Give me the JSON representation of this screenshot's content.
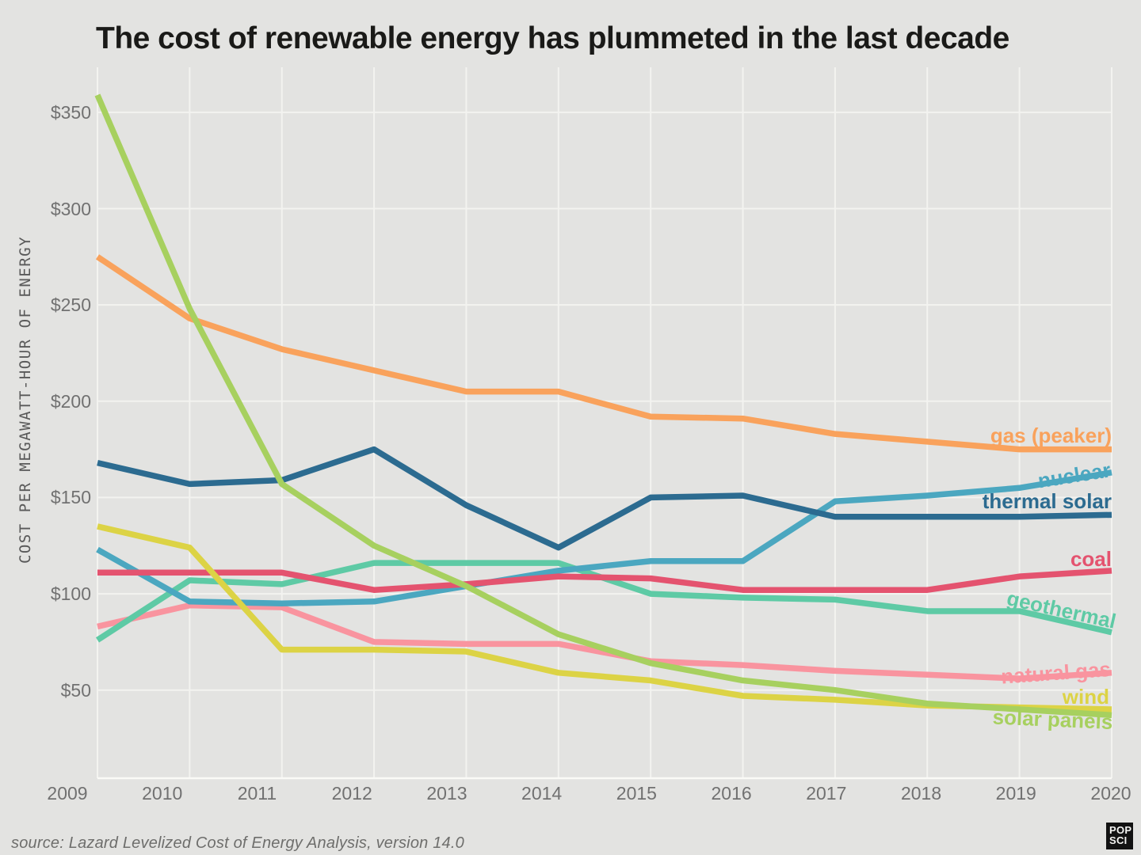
{
  "chart_data": {
    "type": "line",
    "title": "The cost of renewable energy has plummeted in the last decade",
    "ylabel": "COST PER MEGAWATT-HOUR OF ENERGY",
    "x": [
      2009,
      2010,
      2011,
      2012,
      2013,
      2014,
      2015,
      2016,
      2017,
      2018,
      2019,
      2020
    ],
    "yticks": [
      350,
      300,
      250,
      200,
      150,
      100,
      50
    ],
    "ytick_prefix": "$",
    "ylim": [
      4,
      373
    ],
    "grid": "on",
    "legend_position": "right-edge-inline-labels",
    "series": [
      {
        "name": "gas (peaker)",
        "color": "#f9a25c",
        "values": [
          275,
          243,
          227,
          216,
          205,
          205,
          192,
          191,
          183,
          179,
          175,
          175
        ]
      },
      {
        "name": "nuclear",
        "color": "#4ba7c0",
        "values": [
          123,
          96,
          95,
          96,
          104,
          112,
          117,
          117,
          148,
          151,
          155,
          163
        ]
      },
      {
        "name": "thermal solar",
        "color": "#2c6b90",
        "values": [
          168,
          157,
          159,
          175,
          146,
          124,
          150,
          151,
          140,
          140,
          140,
          141
        ]
      },
      {
        "name": "coal",
        "color": "#e4536f",
        "values": [
          111,
          111,
          111,
          102,
          105,
          109,
          108,
          102,
          102,
          102,
          109,
          112
        ]
      },
      {
        "name": "geothermal",
        "color": "#5ecaa5",
        "values": [
          76,
          107,
          105,
          116,
          116,
          116,
          100,
          98,
          97,
          91,
          91,
          80
        ]
      },
      {
        "name": "natural gas",
        "color": "#f9949f",
        "values": [
          83,
          94,
          93,
          75,
          74,
          74,
          65,
          63,
          60,
          58,
          56,
          59
        ]
      },
      {
        "name": "wind",
        "color": "#dcd345",
        "values": [
          135,
          124,
          71,
          71,
          70,
          59,
          55,
          47,
          45,
          42,
          41,
          40
        ]
      },
      {
        "name": "solar panels",
        "color": "#a7d05f",
        "values": [
          359,
          248,
          157,
          125,
          104,
          79,
          64,
          55,
          50,
          43,
          40,
          37
        ]
      }
    ],
    "source": "source: Lazard Levelized Cost of Energy Analysis, version 14.0",
    "logo": {
      "line1": "POP",
      "line2": "SCI"
    }
  }
}
